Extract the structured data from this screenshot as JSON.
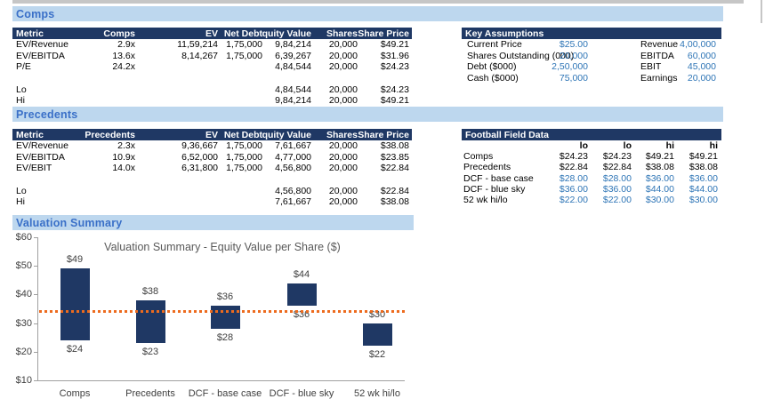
{
  "sections": {
    "comps": {
      "title": "Comps"
    },
    "precedents": {
      "title": "Precedents"
    },
    "valuation": {
      "title": "Valuation Summary"
    }
  },
  "comps_table": {
    "headers": [
      "Metric",
      "Comps",
      "EV",
      "Net Debt",
      "quity Value",
      "Shares",
      "Share Price"
    ],
    "rows": [
      [
        "EV/Revenue",
        "2.9x",
        "11,59,214",
        "1,75,000",
        "9,84,214",
        "20,000",
        "$49.21"
      ],
      [
        "EV/EBITDA",
        "13.6x",
        "8,14,267",
        "1,75,000",
        "6,39,267",
        "20,000",
        "$31.96"
      ],
      [
        "P/E",
        "24.2x",
        "",
        "",
        "4,84,544",
        "20,000",
        "$24.23"
      ],
      [
        "",
        "",
        "",
        "",
        "",
        "",
        ""
      ],
      [
        "Lo",
        "",
        "",
        "",
        "4,84,544",
        "20,000",
        "$24.23"
      ],
      [
        "Hi",
        "",
        "",
        "",
        "9,84,214",
        "20,000",
        "$49.21"
      ]
    ]
  },
  "precedents_table": {
    "headers": [
      "Metric",
      "Precedents",
      "EV",
      "Net Debt",
      "quity Value",
      "Shares",
      "Share Price"
    ],
    "rows": [
      [
        "EV/Revenue",
        "2.3x",
        "9,36,667",
        "1,75,000",
        "7,61,667",
        "20,000",
        "$38.08"
      ],
      [
        "EV/EBITDA",
        "10.9x",
        "6,52,000",
        "1,75,000",
        "4,77,000",
        "20,000",
        "$23.85"
      ],
      [
        "EV/EBIT",
        "14.0x",
        "6,31,800",
        "1,75,000",
        "4,56,800",
        "20,000",
        "$22.84"
      ],
      [
        "",
        "",
        "",
        "",
        "",
        "",
        ""
      ],
      [
        "Lo",
        "",
        "",
        "",
        "4,56,800",
        "20,000",
        "$22.84"
      ],
      [
        "Hi",
        "",
        "",
        "",
        "7,61,667",
        "20,000",
        "$38.08"
      ]
    ]
  },
  "key_assumptions": {
    "title": "Key Assumptions",
    "rows": [
      {
        "label1": "Current Price",
        "value1": "$25.00",
        "label2": "Revenue",
        "value2": "4,00,000"
      },
      {
        "label1": "Shares Outstanding (000)",
        "value1": "20,000",
        "label2": "EBITDA",
        "value2": "60,000"
      },
      {
        "label1": "Debt ($000)",
        "value1": "2,50,000",
        "label2": "EBIT",
        "value2": "45,000"
      },
      {
        "label1": "Cash ($000)",
        "value1": "75,000",
        "label2": "Earnings",
        "value2": "20,000"
      }
    ]
  },
  "football_field": {
    "title": "Football Field Data",
    "col_headers": [
      "lo",
      "lo",
      "hi",
      "hi"
    ],
    "rows": [
      {
        "label": "Comps",
        "values": [
          "$24.23",
          "$24.23",
          "$49.21",
          "$49.21"
        ],
        "blue": false
      },
      {
        "label": "Precedents",
        "values": [
          "$22.84",
          "$22.84",
          "$38.08",
          "$38.08"
        ],
        "blue": false
      },
      {
        "label": "DCF - base case",
        "values": [
          "$28.00",
          "$28.00",
          "$36.00",
          "$36.00"
        ],
        "blue": true
      },
      {
        "label": "DCF - blue sky",
        "values": [
          "$36.00",
          "$36.00",
          "$44.00",
          "$44.00"
        ],
        "blue": true
      },
      {
        "label": "52 wk hi/lo",
        "values": [
          "$22.00",
          "$22.00",
          "$30.00",
          "$30.00"
        ],
        "blue": true
      }
    ]
  },
  "chart_data": {
    "type": "bar",
    "subtype": "floating-range-football-field",
    "title": "Valuation Summary - Equity Value per Share ($)",
    "categories": [
      "Comps",
      "Precedents",
      "DCF - base case",
      "DCF - blue sky",
      "52 wk hi/lo"
    ],
    "series": [
      {
        "name": "low",
        "values": [
          24,
          23,
          28,
          36,
          22
        ]
      },
      {
        "name": "high",
        "values": [
          49,
          38,
          36,
          44,
          30
        ]
      }
    ],
    "labels_high": [
      "$49",
      "$38",
      "$36",
      "$44",
      "$30"
    ],
    "labels_low": [
      "$24",
      "$23",
      "$28",
      "$36",
      "$22"
    ],
    "y_ticks": [
      60,
      50,
      40,
      30,
      20,
      10
    ],
    "y_tick_labels": [
      "$60",
      "$50",
      "$40",
      "$30",
      "$20",
      "$10"
    ],
    "ylim": [
      10,
      60
    ],
    "grid": false,
    "legend": false,
    "reference_line_value": 34.2,
    "bar_color": "#1F3864",
    "reference_line_color": "#ED6B1E"
  },
  "colors": {
    "table_header_bg": "#1F3864",
    "section_band_bg": "#BDD7EE",
    "section_title_text": "#3A70C8",
    "input_value_blue": "#2E75B6",
    "bar_navy": "#1F3864",
    "reference_orange": "#ED6B1E"
  }
}
